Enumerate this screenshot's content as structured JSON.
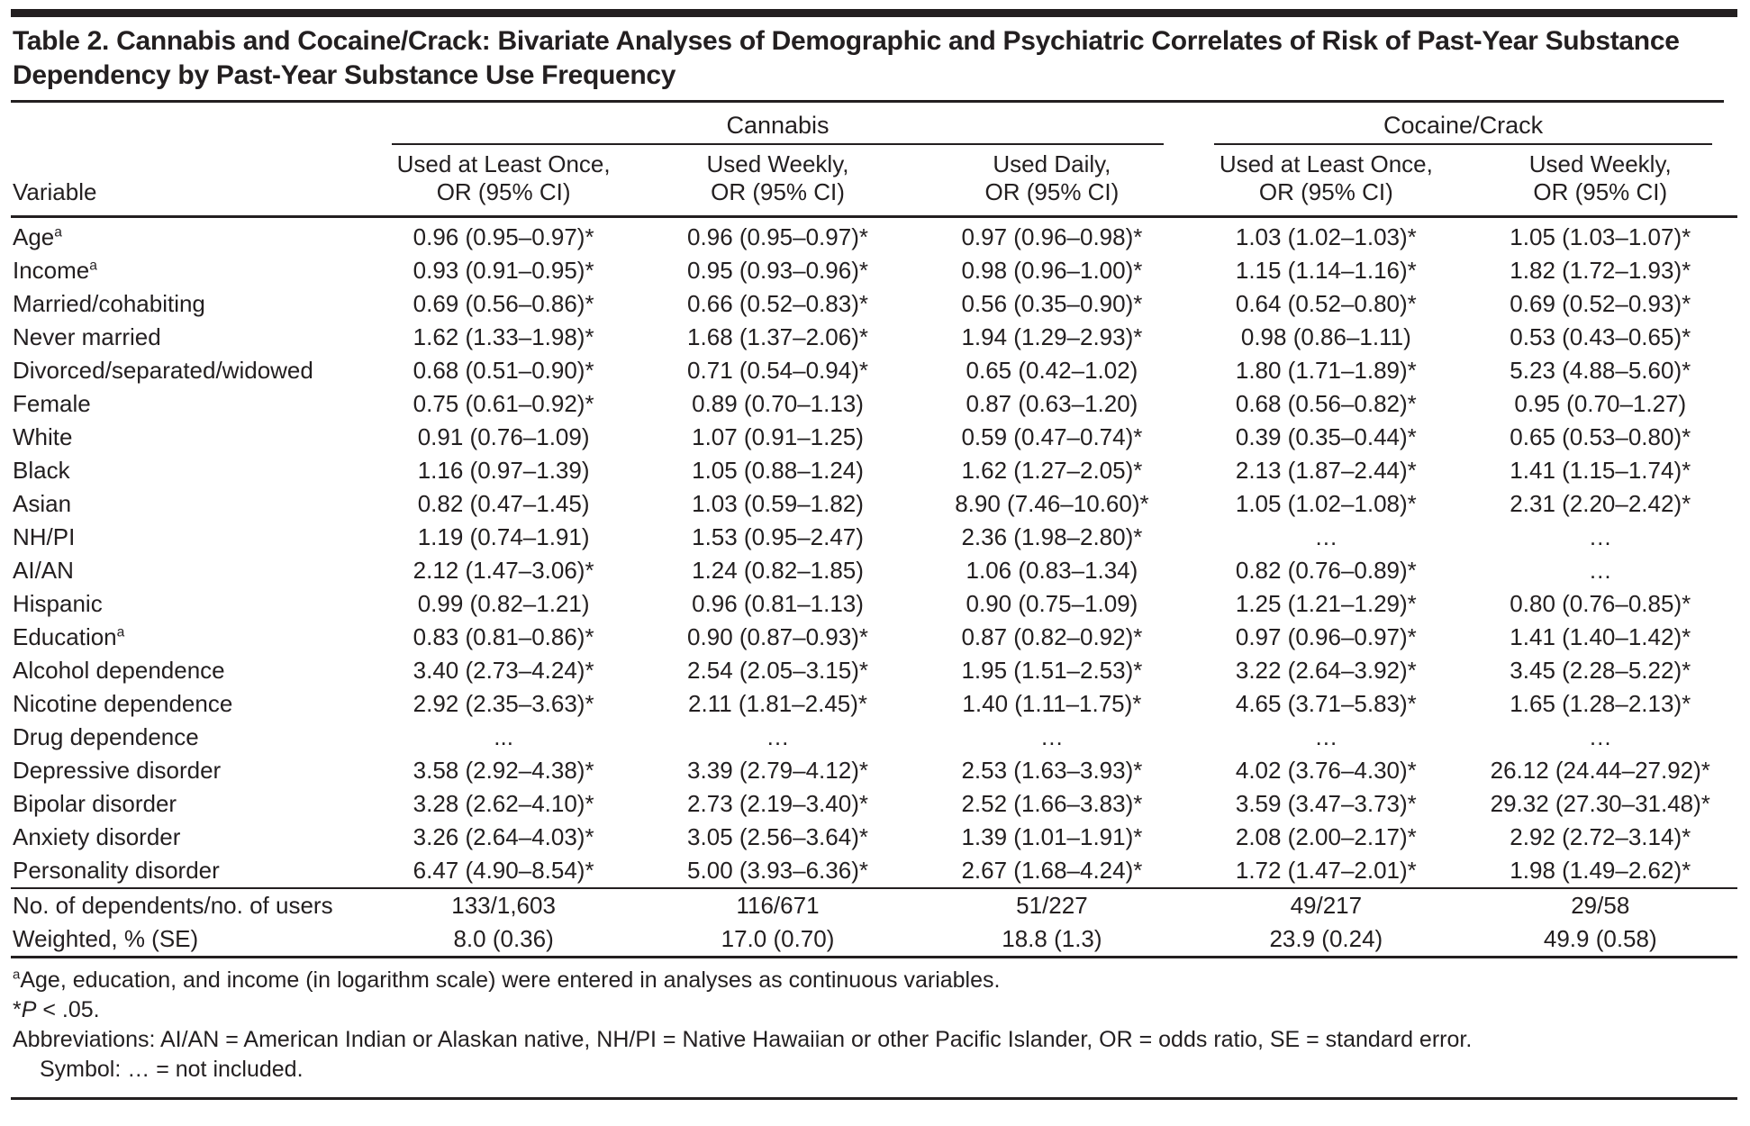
{
  "title": "Table 2. Cannabis and Cocaine/Crack: Bivariate Analyses of Demographic and Psychiatric Correlates of Risk of Past-Year Substance Dependency by Past-Year Substance Use Frequency",
  "header": {
    "variable_label": "Variable",
    "groups": [
      {
        "label": "Cannabis"
      },
      {
        "label": "Cocaine/Crack"
      }
    ],
    "columns": [
      {
        "line1": "Used at Least Once,",
        "line2": "OR (95% CI)"
      },
      {
        "line1": "Used Weekly,",
        "line2": "OR (95% CI)"
      },
      {
        "line1": "Used Daily,",
        "line2": "OR (95% CI)"
      },
      {
        "line1": "Used at Least Once,",
        "line2": "OR (95% CI)"
      },
      {
        "line1": "Used Weekly,",
        "line2": "OR (95% CI)"
      }
    ]
  },
  "rows": [
    {
      "label": "Age",
      "sup": "a",
      "values": [
        "0.96 (0.95–0.97)*",
        "0.96 (0.95–0.97)*",
        "0.97 (0.96–0.98)*",
        "1.03 (1.02–1.03)*",
        "1.05 (1.03–1.07)*"
      ]
    },
    {
      "label": "Income",
      "sup": "a",
      "values": [
        "0.93 (0.91–0.95)*",
        "0.95 (0.93–0.96)*",
        "0.98 (0.96–1.00)*",
        "1.15 (1.14–1.16)*",
        "1.82 (1.72–1.93)*"
      ]
    },
    {
      "label": "Married/cohabiting",
      "sup": "",
      "values": [
        "0.69 (0.56–0.86)*",
        "0.66 (0.52–0.83)*",
        "0.56 (0.35–0.90)*",
        "0.64 (0.52–0.80)*",
        "0.69 (0.52–0.93)*"
      ]
    },
    {
      "label": "Never married",
      "sup": "",
      "values": [
        "1.62 (1.33–1.98)*",
        "1.68 (1.37–2.06)*",
        "1.94 (1.29–2.93)*",
        "0.98 (0.86–1.11)",
        "0.53 (0.43–0.65)*"
      ]
    },
    {
      "label": "Divorced/separated/widowed",
      "sup": "",
      "values": [
        "0.68 (0.51–0.90)*",
        "0.71 (0.54–0.94)*",
        "0.65 (0.42–1.02)",
        "1.80 (1.71–1.89)*",
        "5.23 (4.88–5.60)*"
      ]
    },
    {
      "label": "Female",
      "sup": "",
      "values": [
        "0.75 (0.61–0.92)*",
        "0.89 (0.70–1.13)",
        "0.87 (0.63–1.20)",
        "0.68 (0.56–0.82)*",
        "0.95 (0.70–1.27)"
      ]
    },
    {
      "label": "White",
      "sup": "",
      "values": [
        "0.91 (0.76–1.09)",
        "1.07 (0.91–1.25)",
        "0.59 (0.47–0.74)*",
        "0.39 (0.35–0.44)*",
        "0.65 (0.53–0.80)*"
      ]
    },
    {
      "label": "Black",
      "sup": "",
      "values": [
        "1.16 (0.97–1.39)",
        "1.05 (0.88–1.24)",
        "1.62 (1.27–2.05)*",
        "2.13 (1.87–2.44)*",
        "1.41 (1.15–1.74)*"
      ]
    },
    {
      "label": "Asian",
      "sup": "",
      "values": [
        "0.82 (0.47–1.45)",
        "1.03 (0.59–1.82)",
        "8.90 (7.46–10.60)*",
        "1.05 (1.02–1.08)*",
        "2.31 (2.20–2.42)*"
      ]
    },
    {
      "label": "NH/PI",
      "sup": "",
      "values": [
        "1.19 (0.74–1.91)",
        "1.53 (0.95–2.47)",
        "2.36 (1.98–2.80)*",
        "…",
        "…"
      ]
    },
    {
      "label": "AI/AN",
      "sup": "",
      "values": [
        "2.12 (1.47–3.06)*",
        "1.24 (0.82–1.85)",
        "1.06 (0.83–1.34)",
        "0.82 (0.76–0.89)*",
        "…"
      ]
    },
    {
      "label": "Hispanic",
      "sup": "",
      "values": [
        "0.99 (0.82–1.21)",
        "0.96 (0.81–1.13)",
        "0.90 (0.75–1.09)",
        "1.25 (1.21–1.29)*",
        "0.80 (0.76–0.85)*"
      ]
    },
    {
      "label": "Education",
      "sup": "a",
      "values": [
        "0.83 (0.81–0.86)*",
        "0.90 (0.87–0.93)*",
        "0.87 (0.82–0.92)*",
        "0.97 (0.96–0.97)*",
        "1.41 (1.40–1.42)*"
      ]
    },
    {
      "label": "Alcohol dependence",
      "sup": "",
      "values": [
        "3.40 (2.73–4.24)*",
        "2.54 (2.05–3.15)*",
        "1.95 (1.51–2.53)*",
        "3.22 (2.64–3.92)*",
        "3.45 (2.28–5.22)*"
      ]
    },
    {
      "label": "Nicotine dependence",
      "sup": "",
      "values": [
        "2.92 (2.35–3.63)*",
        "2.11 (1.81–2.45)*",
        "1.40 (1.11–1.75)*",
        "4.65 (3.71–5.83)*",
        "1.65 (1.28–2.13)*"
      ]
    },
    {
      "label": "Drug dependence",
      "sup": "",
      "values": [
        "...",
        "…",
        "…",
        "…",
        "…"
      ]
    },
    {
      "label": "Depressive disorder",
      "sup": "",
      "values": [
        "3.58 (2.92–4.38)*",
        "3.39 (2.79–4.12)*",
        "2.53 (1.63–3.93)*",
        "4.02 (3.76–4.30)*",
        "26.12 (24.44–27.92)*"
      ]
    },
    {
      "label": "Bipolar disorder",
      "sup": "",
      "values": [
        "3.28 (2.62–4.10)*",
        "2.73 (2.19–3.40)*",
        "2.52 (1.66–3.83)*",
        "3.59 (3.47–3.73)*",
        "29.32 (27.30–31.48)*"
      ]
    },
    {
      "label": "Anxiety disorder",
      "sup": "",
      "values": [
        "3.26 (2.64–4.03)*",
        "3.05 (2.56–3.64)*",
        "1.39 (1.01–1.91)*",
        "2.08 (2.00–2.17)*",
        "2.92 (2.72–3.14)*"
      ]
    },
    {
      "label": "Personality disorder",
      "sup": "",
      "values": [
        "6.47 (4.90–8.54)*",
        "5.00 (3.93–6.36)*",
        "2.67 (1.68–4.24)*",
        "1.72 (1.47–2.01)*",
        "1.98 (1.49–2.62)*"
      ]
    }
  ],
  "summary_rows": [
    {
      "label": "No. of dependents/no. of users",
      "sup": "",
      "values": [
        "133/1,603",
        "116/671",
        "51/227",
        "49/217",
        "29/58"
      ]
    },
    {
      "label": "Weighted, % (SE)",
      "sup": "",
      "values": [
        "8.0 (0.36)",
        "17.0 (0.70)",
        "18.8 (1.3)",
        "23.9 (0.24)",
        "49.9 (0.58)"
      ]
    }
  ],
  "footnotes": {
    "a_sup": "a",
    "a_text": "Age, education, and income (in logarithm scale) were entered in analyses as continuous variables.",
    "p_star": "*",
    "p_italic": "P",
    "p_rest": " < .05.",
    "abbrev": "Abbreviations: AI/AN = American Indian or Alaskan native, NH/PI = Native Hawaiian or other Pacific Islander, OR = odds ratio, SE = standard error.",
    "symbol": "Symbol: … = not included."
  }
}
